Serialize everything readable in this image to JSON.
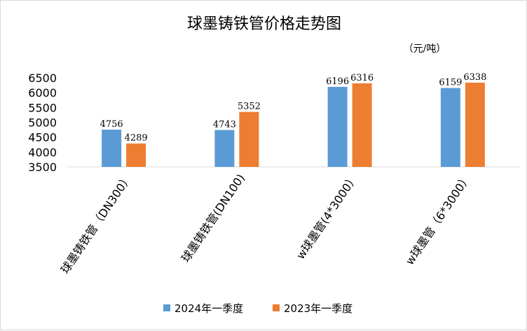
{
  "chart_data": {
    "type": "bar",
    "title": "球墨铸铁管价格走势图",
    "unit_label": "（元/吨）",
    "categories": [
      "球墨铸铁管（DN300）",
      "球墨铸铁管(DN100)",
      "w球墨管(4*3000）",
      "w球墨管（6*3000）"
    ],
    "series": [
      {
        "name": "2024年一季度",
        "color": "#5b9bd5",
        "values": [
          4756,
          4743,
          6196,
          6159
        ]
      },
      {
        "name": "2023年一季度",
        "color": "#ed7d31",
        "values": [
          4289,
          5352,
          6316,
          6338
        ]
      }
    ],
    "ylim": [
      3500,
      6500
    ],
    "yticks": [
      3500,
      4000,
      4500,
      5000,
      5500,
      6000,
      6500
    ],
    "legend_position": "bottom",
    "grid": false
  }
}
